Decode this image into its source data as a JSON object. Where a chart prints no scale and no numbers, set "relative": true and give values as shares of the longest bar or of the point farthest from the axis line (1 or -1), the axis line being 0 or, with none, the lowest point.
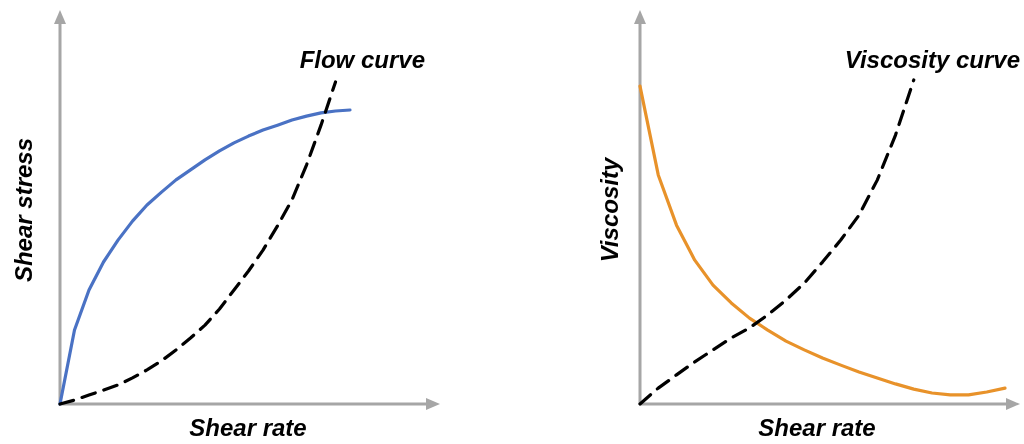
{
  "chart_data": [
    {
      "type": "line",
      "title": "Flow curve",
      "xlabel": "Shear rate",
      "ylabel": "Shear stress",
      "relative": true,
      "categories": [
        null,
        null,
        null,
        null,
        null,
        null,
        null,
        null,
        null,
        null,
        null,
        null,
        null,
        null,
        null,
        null,
        null,
        null,
        null,
        null,
        null
      ],
      "series": [
        {
          "color": "#4a72c4",
          "line_style": "solid",
          "values": [
            0,
            0.23,
            0.354,
            0.441,
            0.509,
            0.568,
            0.618,
            0.658,
            0.696,
            0.727,
            0.758,
            0.786,
            0.811,
            0.832,
            0.851,
            0.866,
            0.882,
            0.894,
            0.904,
            0.91,
            0.913
          ]
        },
        {
          "color": "#000000",
          "line_style": "dashed",
          "values": [
            0,
            0.012,
            0.028,
            0.043,
            0.059,
            0.081,
            0.106,
            0.134,
            0.168,
            0.205,
            0.245,
            0.295,
            0.354,
            0.413,
            0.478,
            0.553,
            0.634,
            0.742,
            0.866,
            1.0,
            null
          ]
        }
      ]
    },
    {
      "type": "line",
      "title": "Viscosity curve",
      "xlabel": "Shear rate",
      "ylabel": "Viscosity",
      "relative": true,
      "categories": [
        null,
        null,
        null,
        null,
        null,
        null,
        null,
        null,
        null,
        null,
        null,
        null,
        null,
        null,
        null,
        null,
        null,
        null,
        null,
        null,
        null
      ],
      "series": [
        {
          "color": "#e8922a",
          "line_style": "solid",
          "values": [
            0.981,
            0.707,
            0.552,
            0.444,
            0.367,
            0.312,
            0.265,
            0.228,
            0.194,
            0.167,
            0.142,
            0.12,
            0.099,
            0.08,
            0.062,
            0.046,
            0.034,
            0.028,
            0.028,
            0.037,
            0.049
          ]
        },
        {
          "color": "#000000",
          "line_style": "dashed",
          "values": [
            0,
            0.049,
            0.09,
            0.13,
            0.167,
            0.204,
            0.235,
            0.275,
            0.321,
            0.373,
            0.438,
            0.506,
            0.583,
            0.691,
            0.83,
            1.0,
            null,
            null,
            null,
            null,
            null
          ]
        }
      ]
    }
  ]
}
